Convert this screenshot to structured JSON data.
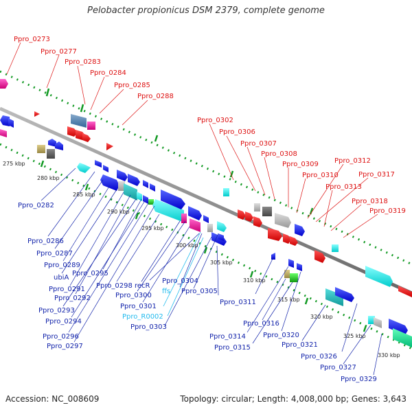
{
  "title": "Pelobacter propionicus DSM 2379, complete genome",
  "footer": {
    "accession": "Accession: NC_008609",
    "genome_info": "Topology: circular; Length: 4,008,000 bp; Genes: 3,643"
  },
  "colors": {
    "top_label": "#dd1111",
    "bottom_label": "#1122aa",
    "rna_label": "#22bbee",
    "backbone": "#888888",
    "tick": "#119922"
  },
  "kbp_ticks": [
    "275 kbp",
    "280 kbp",
    "285 kbp",
    "290 kbp",
    "295 kbp",
    "300 kbp",
    "305 kbp",
    "310 kbp",
    "315 kbp",
    "320 kbp",
    "325 kbp",
    "330 kbp"
  ],
  "top_labels": [
    "Ppro_0273",
    "Ppro_0277",
    "Ppro_0283",
    "Ppro_0284",
    "Ppro_0285",
    "Ppro_0288",
    "Ppro_0302",
    "Ppro_0306",
    "Ppro_0307",
    "Ppro_0308",
    "Ppro_0309",
    "Ppro_0310",
    "Ppro_0312",
    "Ppro_0317",
    "Ppro_0313",
    "Ppro_0318",
    "Ppro_0319"
  ],
  "bottom_labels": [
    "Ppro_0282",
    "Ppro_0286",
    "Ppro_0287",
    "Ppro_0289",
    "ubiA",
    "Ppro_0295",
    "Ppro_0291",
    "Ppro_0292",
    "Ppro_0293",
    "Ppro_0294",
    "Ppro_0296",
    "Ppro_0297",
    "Ppro_0298",
    "recR",
    "Ppro_0300",
    "Ppro_0301",
    "Ppro_R0002",
    "Ppro_0303",
    "ffs",
    "Ppro_0304",
    "Ppro_0305",
    "Ppro_0311",
    "Ppro_0316",
    "Ppro_0314",
    "Ppro_0315",
    "Ppro_0320",
    "Ppro_0321",
    "Ppro_0326",
    "Ppro_0327",
    "Ppro_0329"
  ]
}
